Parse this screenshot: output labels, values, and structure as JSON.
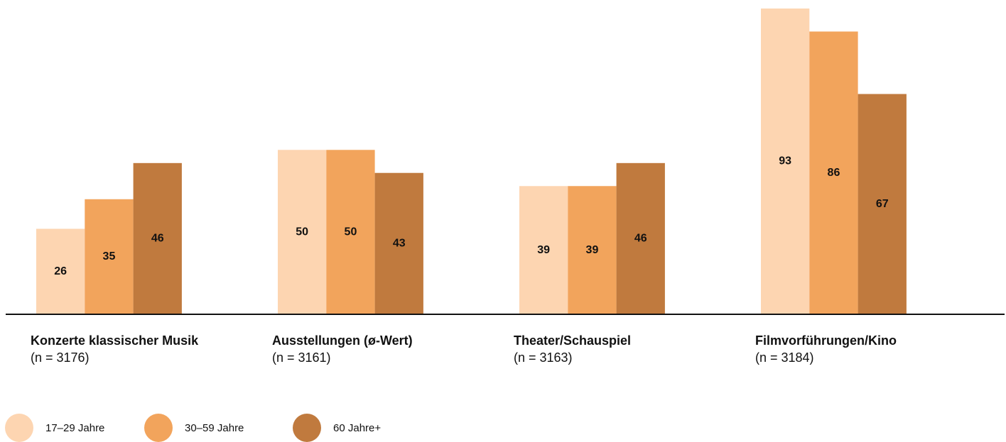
{
  "chart_data": {
    "type": "bar",
    "categories": [
      "Konzerte klassischer Musik",
      "Ausstellungen (ø-Wert)",
      "Theater/Schauspiel",
      "Filmvorführungen/Kino"
    ],
    "category_notes": [
      "(n = 3176)",
      "(n = 3161)",
      "(n = 3163)",
      "(n = 3184)"
    ],
    "series": [
      {
        "name": "17–29 Jahre",
        "color": "#fdd5b1",
        "values": [
          26,
          50,
          39,
          93
        ]
      },
      {
        "name": "30–59 Jahre",
        "color": "#f2a45c",
        "values": [
          35,
          50,
          39,
          86
        ]
      },
      {
        "name": "60 Jahre+",
        "color": "#c07a3e",
        "values": [
          46,
          43,
          46,
          67
        ]
      }
    ],
    "ylim": [
      0,
      93
    ],
    "grid": false
  }
}
